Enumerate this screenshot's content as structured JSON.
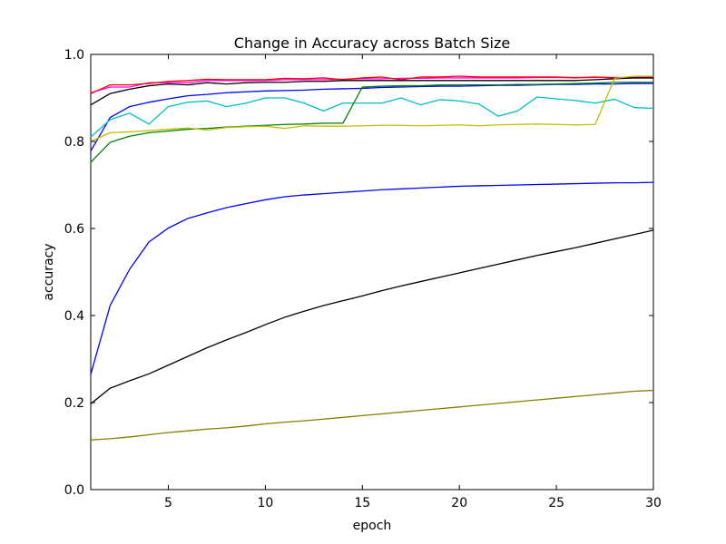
{
  "chart_data": {
    "type": "line",
    "title": "Change in Accuracy across Batch Size",
    "xlabel": "epoch",
    "ylabel": "accuracy",
    "xlim": [
      1,
      30
    ],
    "ylim": [
      0.0,
      1.0
    ],
    "xticks": [
      5,
      10,
      15,
      20,
      25,
      30
    ],
    "xtick_labels": [
      "5",
      "10",
      "15",
      "20",
      "25",
      "30"
    ],
    "yticks": [
      0.0,
      0.2,
      0.4,
      0.6,
      0.8,
      1.0
    ],
    "ytick_labels": [
      "0.0",
      "0.2",
      "0.4",
      "0.6",
      "0.8",
      "1.0"
    ],
    "grid": false,
    "legend": "none",
    "x": [
      1,
      2,
      3,
      4,
      5,
      6,
      7,
      8,
      9,
      10,
      11,
      12,
      13,
      14,
      15,
      16,
      17,
      18,
      19,
      20,
      21,
      22,
      23,
      24,
      25,
      26,
      27,
      28,
      29,
      30
    ],
    "series": [
      {
        "color": "#ff00ff",
        "values": [
          0.912,
          0.925,
          0.925,
          0.935,
          0.935,
          0.935,
          0.94,
          0.94,
          0.94,
          0.94,
          0.942,
          0.942,
          0.942,
          0.943,
          0.944,
          0.944,
          0.945,
          0.945,
          0.946,
          0.946,
          0.946,
          0.946,
          0.946,
          0.947,
          0.947,
          0.947,
          0.947,
          0.947,
          0.947,
          0.948
        ]
      },
      {
        "color": "#ff0000",
        "values": [
          0.91,
          0.93,
          0.93,
          0.933,
          0.938,
          0.94,
          0.943,
          0.942,
          0.942,
          0.942,
          0.945,
          0.944,
          0.946,
          0.942,
          0.946,
          0.948,
          0.942,
          0.948,
          0.948,
          0.95,
          0.948,
          0.948,
          0.948,
          0.948,
          0.948,
          0.946,
          0.948,
          0.946,
          0.946,
          0.946
        ]
      },
      {
        "color": "#000000",
        "values": [
          0.884,
          0.91,
          0.92,
          0.928,
          0.932,
          0.93,
          0.935,
          0.932,
          0.935,
          0.936,
          0.936,
          0.938,
          0.938,
          0.94,
          0.94,
          0.94,
          0.94,
          0.94,
          0.94,
          0.94,
          0.94,
          0.94,
          0.94,
          0.94,
          0.94,
          0.94,
          0.942,
          0.944,
          0.946,
          0.946
        ]
      },
      {
        "color": "#0000ff",
        "values": [
          0.778,
          0.855,
          0.88,
          0.89,
          0.898,
          0.905,
          0.908,
          0.912,
          0.914,
          0.916,
          0.917,
          0.918,
          0.92,
          0.921,
          0.922,
          0.924,
          0.925,
          0.926,
          0.927,
          0.927,
          0.928,
          0.929,
          0.929,
          0.93,
          0.931,
          0.931,
          0.932,
          0.932,
          0.933,
          0.933
        ]
      },
      {
        "color": "#00bfbf",
        "values": [
          0.81,
          0.85,
          0.865,
          0.84,
          0.88,
          0.89,
          0.893,
          0.88,
          0.888,
          0.9,
          0.9,
          0.888,
          0.87,
          0.888,
          0.888,
          0.888,
          0.9,
          0.884,
          0.896,
          0.893,
          0.886,
          0.858,
          0.87,
          0.902,
          0.898,
          0.894,
          0.888,
          0.897,
          0.878,
          0.876
        ]
      },
      {
        "color": "#008000",
        "values": [
          0.752,
          0.798,
          0.812,
          0.82,
          0.824,
          0.828,
          0.83,
          0.833,
          0.835,
          0.837,
          0.839,
          0.84,
          0.842,
          0.842,
          0.925,
          0.927,
          0.928,
          0.928,
          0.93,
          0.93,
          0.93,
          0.93,
          0.931,
          0.931,
          0.932,
          0.933,
          0.934,
          0.936,
          0.936,
          0.936
        ]
      },
      {
        "color": "#bfbf00",
        "values": [
          0.8,
          0.82,
          0.822,
          0.825,
          0.828,
          0.831,
          0.826,
          0.832,
          0.834,
          0.835,
          0.83,
          0.836,
          0.835,
          0.835,
          0.836,
          0.837,
          0.837,
          0.836,
          0.837,
          0.838,
          0.836,
          0.838,
          0.839,
          0.84,
          0.839,
          0.838,
          0.839,
          0.945,
          0.95,
          0.95
        ]
      },
      {
        "color": "#0000ff",
        "values": [
          0.265,
          0.423,
          0.506,
          0.569,
          0.601,
          0.623,
          0.636,
          0.648,
          0.657,
          0.666,
          0.673,
          0.677,
          0.68,
          0.683,
          0.686,
          0.689,
          0.691,
          0.693,
          0.695,
          0.697,
          0.698,
          0.699,
          0.7,
          0.701,
          0.702,
          0.703,
          0.704,
          0.705,
          0.705,
          0.706
        ]
      },
      {
        "color": "#000000",
        "values": [
          0.197,
          0.233,
          0.25,
          0.266,
          0.286,
          0.306,
          0.326,
          0.344,
          0.361,
          0.379,
          0.396,
          0.41,
          0.423,
          0.434,
          0.445,
          0.457,
          0.468,
          0.478,
          0.488,
          0.498,
          0.508,
          0.518,
          0.528,
          0.538,
          0.547,
          0.556,
          0.566,
          0.576,
          0.586,
          0.596
        ]
      },
      {
        "color": "#808000",
        "values": [
          0.114,
          0.117,
          0.121,
          0.126,
          0.131,
          0.135,
          0.139,
          0.142,
          0.146,
          0.151,
          0.155,
          0.158,
          0.162,
          0.166,
          0.17,
          0.174,
          0.178,
          0.182,
          0.186,
          0.19,
          0.194,
          0.198,
          0.202,
          0.206,
          0.21,
          0.214,
          0.218,
          0.222,
          0.226,
          0.228
        ]
      }
    ]
  }
}
